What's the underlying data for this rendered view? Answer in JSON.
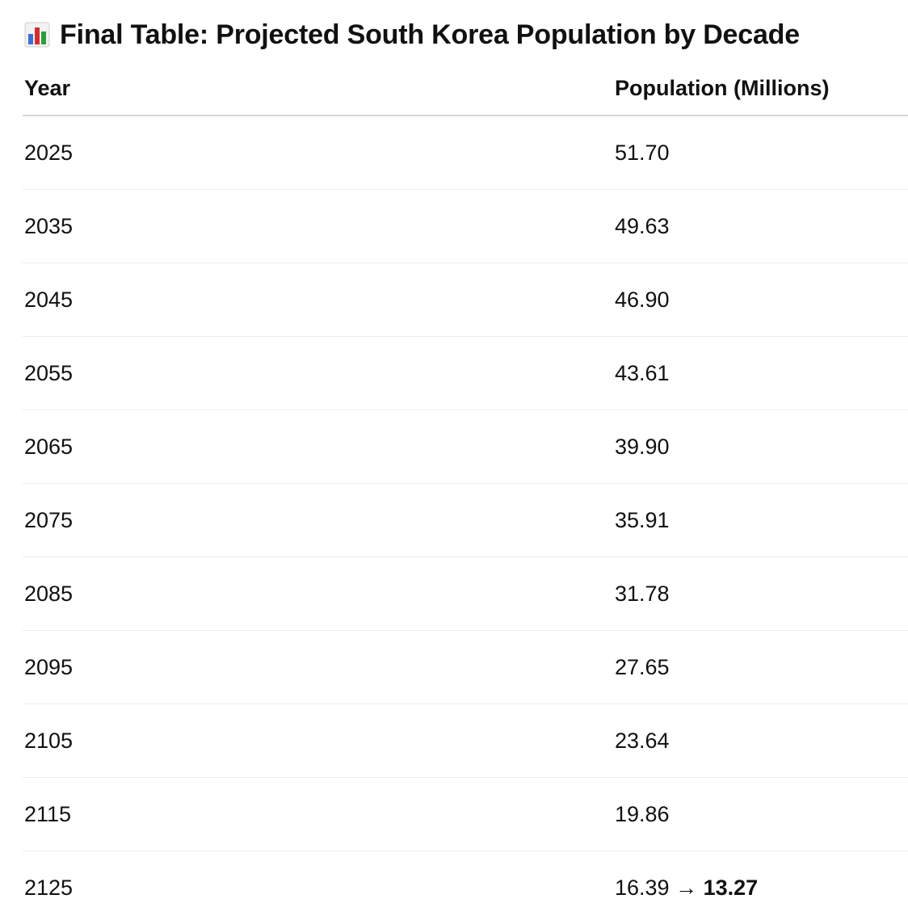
{
  "heading": {
    "icon": "bar-chart-icon",
    "title": "Final Table: Projected South Korea Population by Decade"
  },
  "table": {
    "columns": [
      "Year",
      "Population (Millions)"
    ],
    "rows": [
      {
        "year": "2025",
        "population": "51.70"
      },
      {
        "year": "2035",
        "population": "49.63"
      },
      {
        "year": "2045",
        "population": "46.90"
      },
      {
        "year": "2055",
        "population": "43.61"
      },
      {
        "year": "2065",
        "population": "39.90"
      },
      {
        "year": "2075",
        "population": "35.91"
      },
      {
        "year": "2085",
        "population": "31.78"
      },
      {
        "year": "2095",
        "population": "27.65"
      },
      {
        "year": "2105",
        "population": "23.64"
      },
      {
        "year": "2115",
        "population": "19.86"
      },
      {
        "year": "2125",
        "population": "16.39",
        "arrow": "→",
        "population_adjusted": "13.27"
      }
    ]
  },
  "colors": {
    "icon_blue": "#3b6fd1",
    "icon_red": "#d32f2f",
    "icon_green": "#2e9d3c"
  }
}
